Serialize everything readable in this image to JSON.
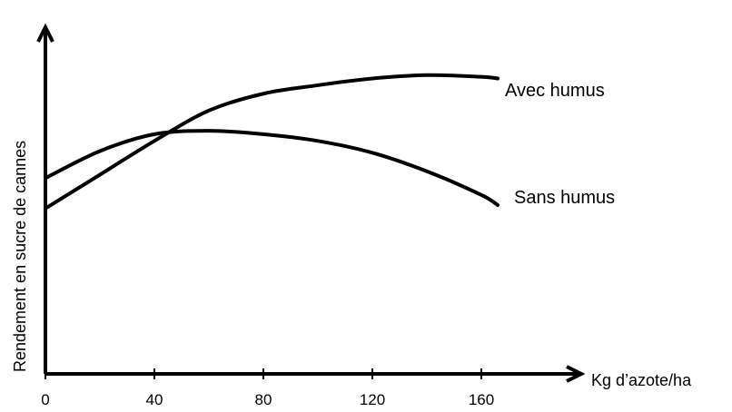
{
  "chart_data": {
    "type": "line",
    "xlabel": "Kg d’azote/ha",
    "ylabel": "Rendement en sucre de cannes",
    "xticks": [
      0,
      40,
      80,
      120,
      160
    ],
    "xlim": [
      0,
      200
    ],
    "ylim": [
      0,
      1
    ],
    "grid": false,
    "series": [
      {
        "name": "Avec humus",
        "x": [
          0,
          20,
          40,
          60,
          80,
          100,
          120,
          140,
          160,
          166
        ],
        "y": [
          0.49,
          0.59,
          0.69,
          0.78,
          0.83,
          0.855,
          0.875,
          0.885,
          0.88,
          0.875
        ]
      },
      {
        "name": "Sans humus",
        "x": [
          0,
          20,
          40,
          60,
          80,
          100,
          120,
          140,
          160,
          166
        ],
        "y": [
          0.58,
          0.66,
          0.71,
          0.72,
          0.71,
          0.69,
          0.655,
          0.6,
          0.53,
          0.5
        ]
      }
    ]
  }
}
